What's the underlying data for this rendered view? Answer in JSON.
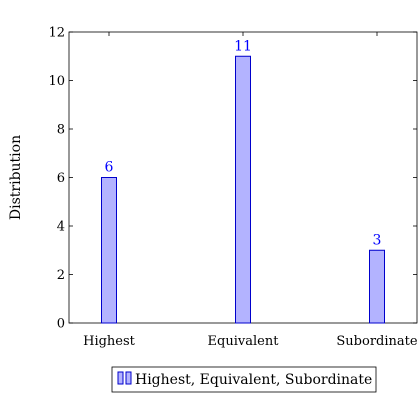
{
  "chart_data": {
    "type": "bar",
    "categories": [
      "Highest",
      "Equivalent",
      "Subordinate"
    ],
    "series": [
      {
        "name": "Highest, Equivalent, Subordinate",
        "values": [
          6,
          11,
          3
        ]
      }
    ],
    "ylabel": "Distribution",
    "ylim": [
      0,
      12
    ],
    "yticks": [
      0,
      2,
      4,
      6,
      8,
      10,
      12
    ],
    "grid": false,
    "legend_position": "bottom",
    "colors": {
      "bar_fill": "#b3b3ff",
      "bar_stroke": "#0000cc",
      "data_label": "#0000ff"
    }
  }
}
